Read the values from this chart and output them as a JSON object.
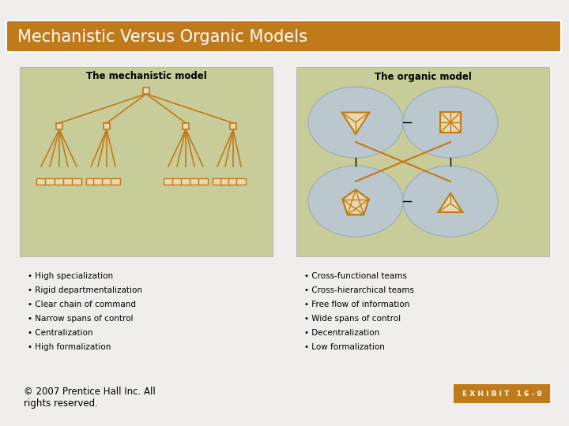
{
  "title": "Mechanistic Versus Organic Models",
  "title_bg": "#c17a1a",
  "title_color": "#ffffff",
  "slide_bg": "#f0eeec",
  "mech_title": "The mechanistic model",
  "org_title": "The organic model",
  "mech_bg": "#c8cc99",
  "org_bg": "#c8cc99",
  "node_color": "#e8d9b0",
  "node_edge": "#c17a1a",
  "line_color": "#c17a1a",
  "ellipse_color": "#b8c8d8",
  "copyright": "© 2007 Prentice Hall Inc. All\nrights reserved.",
  "exhibit": "E X H I B I T   1 6 - 9",
  "exhibit_bg": "#c17a1a",
  "exhibit_color": "#ffffff",
  "mech_bullets": [
    "High specialization",
    "Rigid departmentalization",
    "Clear chain of command",
    "Narrow spans of control",
    "Centralization",
    "High formalization"
  ],
  "org_bullets": [
    "Cross-functional teams",
    "Cross-hierarchical teams",
    "Free flow of information",
    "Wide spans of control",
    "Decentralization",
    "Low formalization"
  ]
}
